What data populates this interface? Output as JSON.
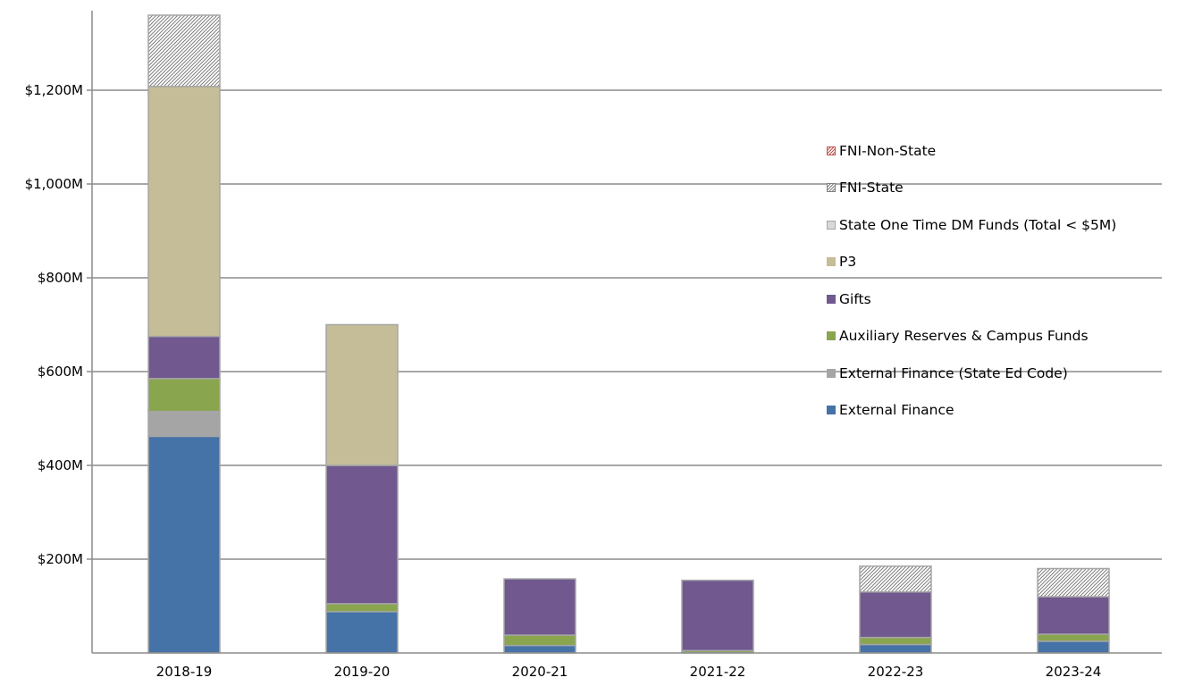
{
  "chart_data": {
    "type": "bar",
    "stacked": true,
    "categories": [
      "2018-19",
      "2019-20",
      "2020-21",
      "2021-22",
      "2022-23",
      "2023-24"
    ],
    "yticks": [
      "$200M",
      "$400M",
      "$600M",
      "$800M",
      "$1,000M",
      "$1,200M"
    ],
    "ytick_values": [
      200,
      400,
      600,
      800,
      1000,
      1200
    ],
    "ylim": [
      0,
      1360
    ],
    "grid": true,
    "legend_position": "right",
    "series": [
      {
        "name": "External Finance",
        "color": "#4572a7",
        "pattern": "solid",
        "values": [
          462,
          88,
          16,
          0,
          18,
          25
        ]
      },
      {
        "name": "External Finance (State Ed Code)",
        "color": "#a5a5a5",
        "pattern": "solid",
        "values": [
          53,
          0,
          0,
          0,
          0,
          0
        ]
      },
      {
        "name": "Auxiliary Reserves & Campus Funds",
        "color": "#89a54e",
        "pattern": "solid",
        "values": [
          70,
          17,
          22,
          5,
          15,
          15
        ]
      },
      {
        "name": "Gifts",
        "color": "#71588f",
        "pattern": "solid",
        "values": [
          90,
          295,
          120,
          150,
          97,
          80
        ]
      },
      {
        "name": "P3",
        "color": "#c4bd97",
        "pattern": "solid",
        "values": [
          533,
          300,
          0,
          0,
          0,
          0
        ]
      },
      {
        "name": "State One Time DM Funds (Total < $5M)",
        "color": "#d9d9d9",
        "pattern": "solid",
        "values": [
          0,
          0,
          0,
          0,
          0,
          0
        ]
      },
      {
        "name": "FNI-State",
        "color": "#7f7f7f",
        "pattern": "hatch",
        "values": [
          152,
          0,
          0,
          0,
          55,
          60
        ]
      },
      {
        "name": "FNI-Non-State",
        "color": "#c0504d",
        "pattern": "hatch",
        "values": [
          0,
          0,
          0,
          0,
          0,
          0
        ]
      }
    ]
  }
}
